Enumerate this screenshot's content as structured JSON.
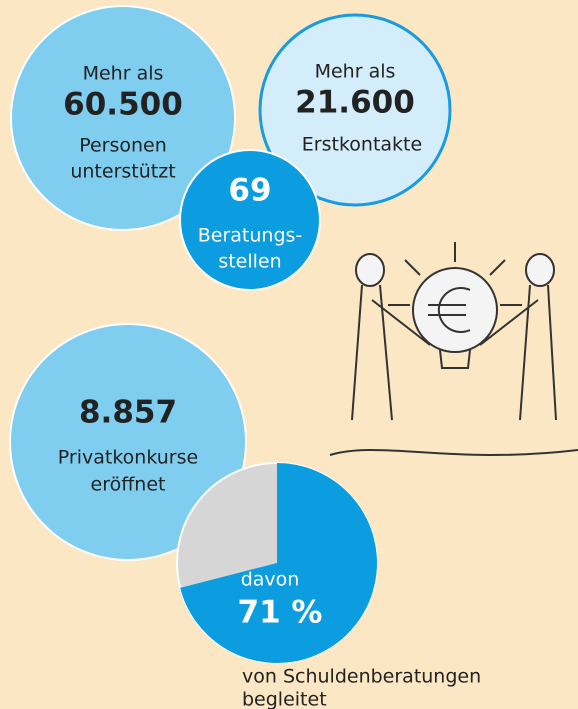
{
  "bubbles": [
    {
      "prefix": "Mehr als",
      "value": "60.500",
      "lines": [
        "Personen",
        "unterstützt"
      ]
    },
    {
      "prefix": "Mehr als",
      "value": "21.600",
      "lines": [
        "Erstkontakte"
      ]
    },
    {
      "value": "69",
      "lines": [
        "Beratungs-",
        "stellen"
      ]
    },
    {
      "value": "8.857",
      "lines": [
        "Privatkonkurse",
        "eröffnet"
      ]
    }
  ],
  "pie": {
    "prefix": "davon",
    "value": 71,
    "value_label": "71 %",
    "caption": [
      "von Schuldenberatungen",
      "begleitet"
    ]
  }
}
